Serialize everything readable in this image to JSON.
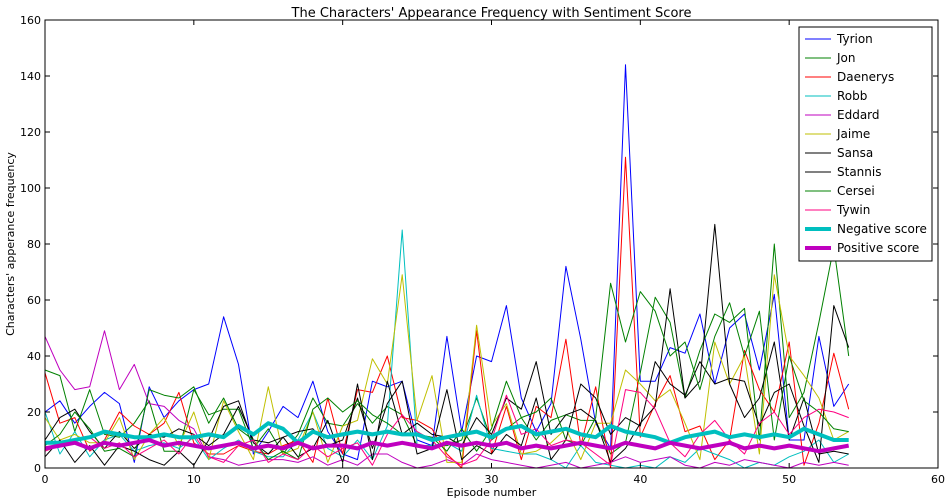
{
  "chart_data": {
    "type": "line",
    "title": "The Characters' Appearance Frequency with Sentiment Score",
    "xlabel": "Episode number",
    "ylabel": "Characters' apperance frequency",
    "xlim": [
      0,
      60
    ],
    "ylim": [
      0,
      160
    ],
    "xticks": [
      "0",
      "10",
      "20",
      "30",
      "40",
      "50",
      "60"
    ],
    "yticks": [
      "0",
      "20",
      "40",
      "60",
      "80",
      "100",
      "120",
      "140",
      "160"
    ],
    "grid": false,
    "legend_position": "top-right",
    "x": [
      0,
      1,
      2,
      3,
      4,
      5,
      6,
      7,
      8,
      9,
      10,
      11,
      12,
      13,
      14,
      15,
      16,
      17,
      18,
      19,
      20,
      21,
      22,
      23,
      24,
      25,
      26,
      27,
      28,
      29,
      30,
      31,
      32,
      33,
      34,
      35,
      36,
      37,
      38,
      39,
      40,
      41,
      42,
      43,
      44,
      45,
      46,
      47,
      48,
      49,
      50,
      51,
      52,
      53,
      54
    ],
    "series": [
      {
        "name": "Tyrion",
        "color": "#0000ff",
        "width": 1,
        "values": [
          20,
          24,
          16,
          22,
          27,
          23,
          2,
          29,
          18,
          24,
          28,
          30,
          54,
          37,
          5,
          13,
          22,
          18,
          31,
          13,
          5,
          3,
          31,
          29,
          31,
          10,
          8,
          47,
          13,
          40,
          38,
          58,
          25,
          13,
          23,
          72,
          46,
          16,
          7,
          144,
          31,
          31,
          43,
          41,
          55,
          30,
          50,
          55,
          35,
          62,
          10,
          10,
          47,
          22,
          30
        ]
      },
      {
        "name": "Jon",
        "color": "#008000",
        "width": 1,
        "values": [
          35,
          33,
          13,
          28,
          12,
          11,
          16,
          24,
          6,
          6,
          28,
          19,
          21,
          21,
          7,
          14,
          5,
          12,
          25,
          16,
          15,
          23,
          16,
          22,
          19,
          8,
          8,
          8,
          10,
          25,
          10,
          14,
          18,
          10,
          17,
          19,
          17,
          17,
          5,
          9,
          34,
          61,
          52,
          25,
          42,
          55,
          52,
          57,
          10,
          80,
          18,
          27,
          52,
          79,
          40
        ]
      },
      {
        "name": "Daenerys",
        "color": "#ff0000",
        "width": 1,
        "values": [
          34,
          16,
          18,
          6,
          10,
          20,
          15,
          12,
          16,
          27,
          9,
          5,
          5,
          8,
          6,
          5,
          8,
          10,
          2,
          25,
          5,
          28,
          27,
          40,
          18,
          17,
          14,
          5,
          0,
          49,
          5,
          22,
          3,
          22,
          18,
          46,
          8,
          29,
          0,
          111,
          11,
          23,
          33,
          13,
          15,
          3,
          10,
          42,
          28,
          20,
          45,
          1,
          16,
          41,
          21
        ]
      },
      {
        "name": "Robb",
        "color": "#00bfbf",
        "width": 1,
        "values": [
          20,
          5,
          13,
          4,
          10,
          12,
          6,
          8,
          9,
          7,
          11,
          3,
          7,
          10,
          6,
          4,
          4,
          10,
          20,
          7,
          4,
          10,
          3,
          15,
          85,
          8,
          8,
          9,
          6,
          26,
          7,
          6,
          5,
          5,
          3,
          0,
          8,
          2,
          1,
          0,
          1,
          0,
          4,
          2,
          7,
          5,
          3,
          0,
          2,
          1,
          4,
          6,
          10,
          2,
          5
        ]
      },
      {
        "name": "Eddard",
        "color": "#bf00bf",
        "width": 1,
        "values": [
          47,
          35,
          28,
          29,
          49,
          28,
          37,
          23,
          22,
          17,
          14,
          4,
          3,
          1,
          2,
          3,
          3,
          2,
          4,
          1,
          3,
          1,
          5,
          5,
          2,
          0,
          1,
          3,
          1,
          5,
          3,
          2,
          1,
          0,
          1,
          2,
          0,
          1,
          2,
          4,
          2,
          3,
          4,
          1,
          0,
          2,
          1,
          3,
          2,
          1,
          0,
          2,
          1,
          2,
          1
        ]
      },
      {
        "name": "Jaime",
        "color": "#bfbf00",
        "width": 1,
        "values": [
          18,
          10,
          12,
          9,
          9,
          18,
          3,
          12,
          18,
          8,
          20,
          3,
          24,
          13,
          3,
          29,
          5,
          7,
          20,
          2,
          15,
          17,
          39,
          30,
          69,
          17,
          33,
          2,
          2,
          51,
          15,
          23,
          5,
          6,
          9,
          14,
          3,
          16,
          16,
          35,
          30,
          24,
          28,
          16,
          3,
          45,
          30,
          40,
          5,
          69,
          40,
          33,
          25,
          10,
          13
        ]
      },
      {
        "name": "Sansa",
        "color": "#000000",
        "width": 1,
        "values": [
          10,
          18,
          21,
          13,
          7,
          13,
          7,
          12,
          11,
          14,
          12,
          8,
          12,
          22,
          10,
          9,
          11,
          13,
          14,
          8,
          10,
          25,
          7,
          23,
          31,
          5,
          7,
          28,
          3,
          8,
          5,
          12,
          8,
          25,
          3,
          10,
          30,
          25,
          12,
          18,
          15,
          38,
          30,
          26,
          38,
          30,
          32,
          31,
          15,
          27,
          30,
          15,
          2,
          58,
          43
        ]
      },
      {
        "name": "Stannis",
        "color": "#000000",
        "width": 1,
        "values": [
          4,
          10,
          2,
          8,
          1,
          8,
          6,
          3,
          1,
          6,
          1,
          10,
          22,
          24,
          9,
          5,
          11,
          4,
          7,
          17,
          2,
          30,
          3,
          31,
          12,
          16,
          12,
          11,
          8,
          18,
          12,
          25,
          21,
          38,
          12,
          19,
          21,
          17,
          2,
          7,
          16,
          22,
          64,
          25,
          31,
          87,
          30,
          18,
          25,
          45,
          10,
          25,
          5,
          6,
          5
        ]
      },
      {
        "name": "Cersei",
        "color": "#008000",
        "width": 1,
        "values": [
          8,
          12,
          20,
          14,
          6,
          7,
          4,
          28,
          26,
          25,
          29,
          16,
          25,
          14,
          10,
          3,
          6,
          3,
          21,
          25,
          20,
          24,
          19,
          16,
          12,
          12,
          11,
          6,
          14,
          6,
          14,
          31,
          18,
          20,
          25,
          10,
          8,
          18,
          66,
          45,
          63,
          56,
          40,
          45,
          28,
          47,
          59,
          40,
          56,
          10,
          40,
          24,
          20,
          14,
          13
        ]
      },
      {
        "name": "Tywin",
        "color": "#ff0080",
        "width": 1,
        "values": [
          6,
          8,
          10,
          11,
          7,
          9,
          4,
          7,
          10,
          5,
          12,
          4,
          2,
          8,
          10,
          2,
          5,
          3,
          8,
          4,
          7,
          9,
          1,
          12,
          19,
          13,
          10,
          4,
          1,
          3,
          10,
          26,
          12,
          14,
          8,
          10,
          9,
          5,
          1,
          28,
          27,
          21,
          9,
          4,
          12,
          17,
          10,
          5,
          16,
          20,
          12,
          18,
          21,
          20,
          18
        ]
      },
      {
        "name": "Negative score",
        "color": "#00bfbf",
        "width": 4,
        "values": [
          9,
          9,
          10,
          11,
          13,
          12,
          11,
          11,
          12,
          11,
          11,
          12,
          11,
          15,
          12,
          16,
          14,
          9,
          13,
          11,
          12,
          13,
          12,
          13,
          12,
          12,
          10,
          11,
          12,
          13,
          11,
          14,
          15,
          12,
          13,
          14,
          12,
          11,
          15,
          13,
          12,
          11,
          9,
          11,
          12,
          13,
          11,
          12,
          11,
          12,
          11,
          14,
          12,
          10,
          10
        ]
      },
      {
        "name": "Positive score",
        "color": "#bf00bf",
        "width": 4,
        "values": [
          7,
          8,
          9,
          7,
          9,
          8,
          9,
          10,
          8,
          9,
          8,
          7,
          8,
          9,
          7,
          8,
          7,
          9,
          7,
          8,
          8,
          7,
          9,
          8,
          9,
          8,
          7,
          9,
          8,
          9,
          8,
          9,
          7,
          8,
          7,
          8,
          9,
          8,
          7,
          9,
          8,
          7,
          9,
          8,
          7,
          8,
          9,
          7,
          8,
          7,
          8,
          7,
          6,
          7,
          8
        ]
      }
    ]
  }
}
